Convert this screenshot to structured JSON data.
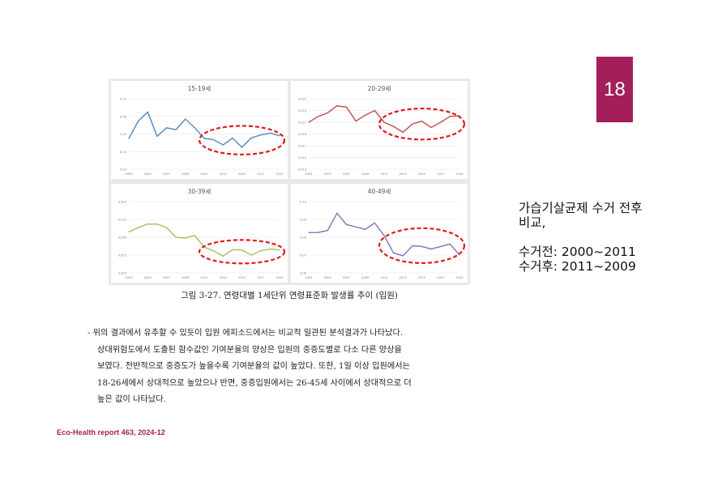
{
  "page": {
    "number": "18",
    "accent": "#a31f5c"
  },
  "side_note": {
    "line1": "가습기살균제 수거 전후",
    "line2": "비교,",
    "line3": "수거전: 2000~2011",
    "line4": "수거후: 2011~2009"
  },
  "figure": {
    "caption": "그림 3-27. 연령대별 1세단위 연령표준화 발생률 추이 (입원)"
  },
  "body": {
    "lines": [
      "- 위의 결과에서 유추할 수 있듯이 입원 에피소드에서는 비교적 일관된 분석결과가 나타났다.",
      "상대위험도에서 도출된 함수값인 기여분율의 양상은 입원의 중증도별로 다소 다른 양상을",
      "보였다. 전반적으로 중증도가 높을수록 기여분율의 값이 높았다. 또한, 1일 이상 입원에서는",
      "18-26세에서 상대적으로 높았으나 반면, 중증입원에서는 26-45세 사이에서 상대적으로 더",
      "높은 값이 나타났다."
    ]
  },
  "footer": {
    "text": "Eco-Health report 463, 2024-12"
  },
  "chart_data": [
    {
      "type": "line",
      "title": "15-19세",
      "color": "#5b8fc5",
      "x": [
        2003,
        2004,
        2005,
        2006,
        2007,
        2008,
        2009,
        2010,
        2011,
        2012,
        2013,
        2014,
        2015,
        2016,
        2017,
        2018,
        2019
      ],
      "x_ticks": [
        "2003",
        "2005",
        "2007",
        "2009",
        "2011",
        "2013",
        "2015",
        "2017",
        "2019"
      ],
      "y_ticks": [
        "0.07",
        "0.06",
        "0.05",
        "0.04",
        "0.03"
      ],
      "ylim": [
        0.03,
        0.07
      ],
      "values": [
        0.0475,
        0.0573,
        0.0625,
        0.0487,
        0.0535,
        0.0525,
        0.0585,
        0.0535,
        0.0475,
        0.0468,
        0.0438,
        0.0477,
        0.0425,
        0.0478,
        0.0495,
        0.0505,
        0.049
      ],
      "highlight": {
        "x_from": 2011,
        "x_to": 2019
      }
    },
    {
      "type": "line",
      "title": "20-29세",
      "color": "#c55555",
      "x": [
        2003,
        2004,
        2005,
        2006,
        2007,
        2008,
        2009,
        2010,
        2011,
        2012,
        2013,
        2014,
        2015,
        2016,
        2017,
        2018,
        2019
      ],
      "x_ticks": [
        "2003",
        "2005",
        "2007",
        "2009",
        "2011",
        "2013",
        "2015",
        "2017",
        "2019"
      ],
      "y_ticks": [
        "0.025",
        "0.023",
        "0.021",
        "0.019",
        "0.017",
        "0.015",
        "0.013"
      ],
      "ylim": [
        0.013,
        0.025
      ],
      "values": [
        0.021,
        0.022,
        0.0226,
        0.0238,
        0.0236,
        0.0212,
        0.0222,
        0.023,
        0.021,
        0.0203,
        0.0193,
        0.0207,
        0.0212,
        0.0201,
        0.021,
        0.022,
        0.0221
      ],
      "highlight": {
        "x_from": 2011,
        "x_to": 2019
      }
    },
    {
      "type": "line",
      "title": "30-39세",
      "color": "#a8c267",
      "x": [
        2003,
        2004,
        2005,
        2006,
        2007,
        2008,
        2009,
        2010,
        2011,
        2012,
        2013,
        2014,
        2015,
        2016,
        2017,
        2018,
        2019
      ],
      "x_ticks": [
        "2003",
        "2005",
        "2007",
        "2009",
        "2011",
        "2013",
        "2015",
        "2017",
        "2019"
      ],
      "y_ticks": [
        "0.040",
        "0.035",
        "0.030",
        "0.025",
        "0.020"
      ],
      "ylim": [
        0.02,
        0.04
      ],
      "values": [
        0.0315,
        0.0327,
        0.0337,
        0.0337,
        0.0327,
        0.03,
        0.0298,
        0.0305,
        0.0272,
        0.0262,
        0.0247,
        0.0265,
        0.0264,
        0.025,
        0.0262,
        0.0267,
        0.0264
      ],
      "highlight": {
        "x_from": 2011,
        "x_to": 2019
      }
    },
    {
      "type": "line",
      "title": "40-49세",
      "color": "#8e78b8",
      "x": [
        2003,
        2004,
        2005,
        2006,
        2007,
        2008,
        2009,
        2010,
        2011,
        2012,
        2013,
        2014,
        2015,
        2016,
        2017,
        2018,
        2019
      ],
      "x_ticks": [
        "2003",
        "2005",
        "2007",
        "2009",
        "2011",
        "2013",
        "2015",
        "2017",
        "2019"
      ],
      "y_ticks": [
        "0.10",
        "0.09",
        "0.08",
        "0.07",
        "0.06"
      ],
      "ylim": [
        0.06,
        0.1
      ],
      "values": [
        0.0826,
        0.0827,
        0.0838,
        0.0935,
        0.0871,
        0.0858,
        0.0844,
        0.088,
        0.081,
        0.0712,
        0.0696,
        0.0752,
        0.0748,
        0.0734,
        0.0748,
        0.0762,
        0.0701
      ],
      "highlight": {
        "x_from": 2011,
        "x_to": 2019
      }
    }
  ]
}
